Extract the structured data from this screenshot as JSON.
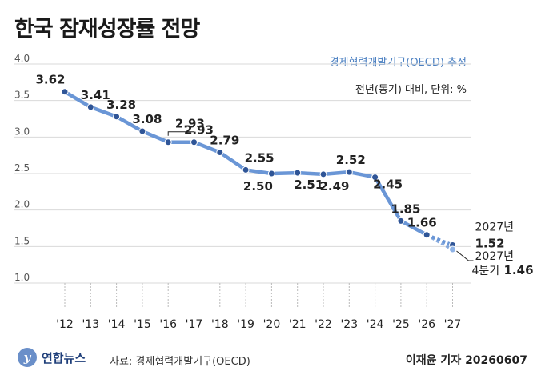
{
  "title": "한국 잠재성장률 전망",
  "source_note": "경제협력개발기구(OECD) 추정",
  "unit_note": "전년(동기) 대비, 단위: %",
  "footer": {
    "logo_text": "연합뉴스",
    "source": "자료: 경제협력개발기구(OECD)",
    "credit": "이재윤 기자 20260607"
  },
  "colors": {
    "line": "#6a96d6",
    "point": "#2f5597",
    "grid": "#d9d9d9",
    "accent": "#4a7fc1"
  },
  "chart_data": {
    "type": "line",
    "title": "한국 잠재성장률 전망",
    "xlabel": "",
    "ylabel": "",
    "ylim": [
      1.0,
      4.0
    ],
    "y_ticks": [
      "4.0",
      "3.5",
      "3.0",
      "2.5",
      "2.0",
      "1.5",
      "1.0"
    ],
    "y_tick_values": [
      4.0,
      3.5,
      3.0,
      2.5,
      2.0,
      1.5,
      1.0
    ],
    "x_tick_labels": [
      "'12",
      "'13",
      "'14",
      "'15",
      "'16",
      "'17",
      "'18",
      "'19",
      "'20",
      "'21",
      "'22",
      "'23",
      "'24",
      "'25",
      "'26",
      "'27"
    ],
    "grid": true,
    "series": [
      {
        "values": [
          3.62,
          3.41,
          3.28,
          3.08,
          2.93,
          2.93,
          2.79,
          2.55,
          2.5,
          2.51,
          2.49,
          2.52,
          2.45,
          1.85,
          1.66,
          1.52
        ],
        "labels": [
          "3.62",
          "3.41",
          "3.28",
          "3.08",
          "",
          "2.93",
          "2.79",
          "2.55",
          "2.50",
          "2.51",
          "2.49",
          "2.52",
          "2.45",
          "1.85",
          "1.66",
          "1.52"
        ]
      }
    ],
    "extra_point": {
      "x": "'27",
      "value": 1.46,
      "label": "1.46"
    },
    "annotations": {
      "y2027_label": "2027년",
      "y2027_value": "1.52",
      "q4_label_line1": "2027년",
      "q4_label_line2": "4분기",
      "q4_value": "1.46"
    }
  }
}
